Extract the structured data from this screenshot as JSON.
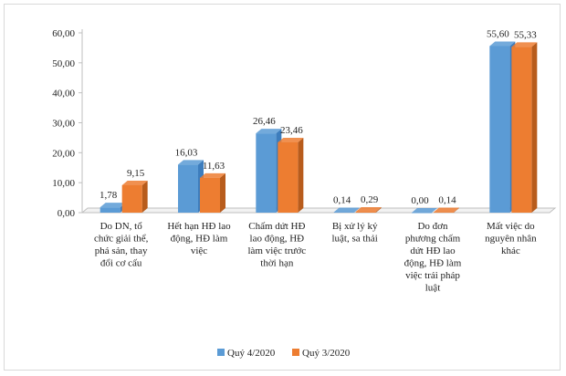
{
  "chart_data": {
    "type": "bar",
    "categories": [
      "Do DN, tổ chức giải thể, phá sản, thay đổi cơ cấu",
      "Hết hạn HĐ lao động, HĐ làm việc",
      "Chấm dứt HĐ lao động, HĐ làm việc trước thời hạn",
      "Bị xử lý kỷ luật, sa thải",
      "Do đơn phương chấm dứt HĐ lao động, HĐ làm việc trái pháp luật",
      "Mất việc do nguyên nhân khác"
    ],
    "category_lines": [
      [
        "Do DN, tổ",
        "chức giải thể,",
        "phá sản, thay",
        "đổi cơ cấu"
      ],
      [
        "Hết hạn HĐ lao",
        "động, HĐ làm",
        "việc"
      ],
      [
        "Chấm dứt HĐ",
        "lao động, HĐ",
        "làm việc trước",
        "thời hạn"
      ],
      [
        "Bị xử lý kỷ",
        "luật, sa thải"
      ],
      [
        "Do đơn",
        "phương chấm",
        "dứt HĐ lao",
        "động, HĐ làm",
        "việc trái pháp",
        "luật"
      ],
      [
        "Mất việc do",
        "nguyên nhân",
        "khác"
      ]
    ],
    "series": [
      {
        "name": "Quý 4/2020",
        "values": [
          1.78,
          16.03,
          26.46,
          0.14,
          0.0,
          55.6
        ],
        "labels": [
          "1,78",
          "16,03",
          "26,46",
          "0,14",
          "0,00",
          "55,60"
        ],
        "color": "#5b9bd5",
        "shade": "#3d7dbd"
      },
      {
        "name": "Quý 3/2020",
        "values": [
          9.15,
          11.63,
          23.46,
          0.29,
          0.14,
          55.33
        ],
        "labels": [
          "9,15",
          "11,63",
          "23,46",
          "0,29",
          "0,14",
          "55,33"
        ],
        "color": "#ed7d31",
        "shade": "#b85c1c"
      }
    ],
    "ylim": [
      0,
      60
    ],
    "yticks": [
      0,
      10,
      20,
      30,
      40,
      50,
      60
    ],
    "ytick_labels": [
      "0,00",
      "10,00",
      "20,00",
      "30,00",
      "40,00",
      "50,00",
      "60,00"
    ],
    "grid": false,
    "legend_position": "bottom",
    "title": "",
    "xlabel": "",
    "ylabel": ""
  }
}
